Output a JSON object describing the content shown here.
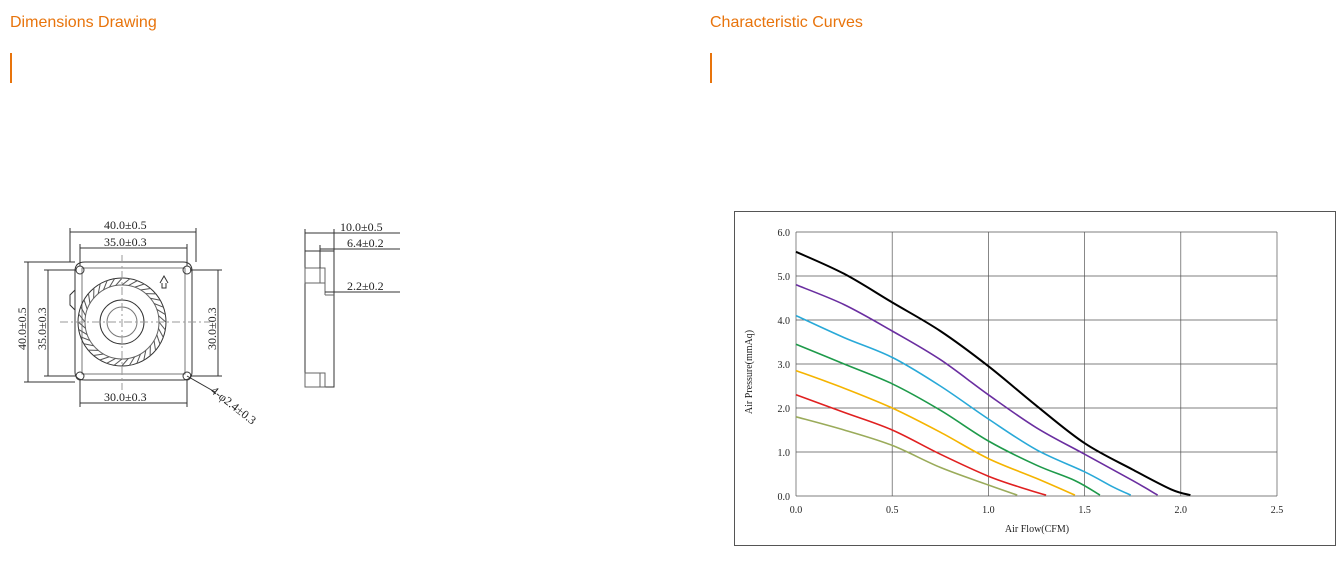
{
  "left_section": {
    "title": "Dimensions Drawing"
  },
  "right_section": {
    "title": "Characteristic Curves"
  },
  "drawing": {
    "dim_top_outer": "40.0±0.5",
    "dim_top_inner": "35.0±0.3",
    "dim_left_outer": "40.0±0.5",
    "dim_left_inner": "35.0±0.3",
    "dim_right": "30.0±0.3",
    "dim_bottom": "30.0±0.3",
    "dim_hole": "4-φ2.4±0.3",
    "dim_side_total": "10.0±0.5",
    "dim_side_a": "6.4±0.2",
    "dim_side_b": "2.2±0.2"
  },
  "chart_data": {
    "type": "line",
    "xlabel": "Air Flow(CFM)",
    "ylabel": "Air Pressure(mmAq)",
    "xlim": [
      0,
      2.5
    ],
    "ylim": [
      0,
      6
    ],
    "x_ticks": [
      "0.0",
      "0.5",
      "1.0",
      "1.5",
      "2.0",
      "2.5"
    ],
    "y_ticks": [
      "0.0",
      "1.0",
      "2.0",
      "3.0",
      "4.0",
      "5.0",
      "6.0"
    ],
    "grid": true,
    "series": [
      {
        "color": "#000000",
        "points": [
          [
            0,
            5.55
          ],
          [
            0.25,
            5.05
          ],
          [
            0.5,
            4.4
          ],
          [
            0.75,
            3.75
          ],
          [
            1.0,
            2.95
          ],
          [
            1.25,
            2.05
          ],
          [
            1.5,
            1.2
          ],
          [
            1.75,
            0.6
          ],
          [
            1.95,
            0.15
          ],
          [
            2.05,
            0.02
          ]
        ]
      },
      {
        "color": "#6a2ea0",
        "points": [
          [
            0,
            4.8
          ],
          [
            0.25,
            4.35
          ],
          [
            0.5,
            3.75
          ],
          [
            0.75,
            3.1
          ],
          [
            1.0,
            2.3
          ],
          [
            1.25,
            1.55
          ],
          [
            1.5,
            0.95
          ],
          [
            1.75,
            0.35
          ],
          [
            1.88,
            0.02
          ]
        ]
      },
      {
        "color": "#29a9d8",
        "points": [
          [
            0,
            4.1
          ],
          [
            0.25,
            3.6
          ],
          [
            0.5,
            3.15
          ],
          [
            0.75,
            2.5
          ],
          [
            1.0,
            1.75
          ],
          [
            1.25,
            1.05
          ],
          [
            1.5,
            0.55
          ],
          [
            1.65,
            0.2
          ],
          [
            1.74,
            0.02
          ]
        ]
      },
      {
        "color": "#1e9a4a",
        "points": [
          [
            0,
            3.45
          ],
          [
            0.25,
            3.0
          ],
          [
            0.5,
            2.55
          ],
          [
            0.75,
            1.95
          ],
          [
            1.0,
            1.25
          ],
          [
            1.25,
            0.7
          ],
          [
            1.45,
            0.35
          ],
          [
            1.58,
            0.02
          ]
        ]
      },
      {
        "color": "#f5b400",
        "points": [
          [
            0,
            2.85
          ],
          [
            0.25,
            2.45
          ],
          [
            0.5,
            2.0
          ],
          [
            0.75,
            1.45
          ],
          [
            1.0,
            0.85
          ],
          [
            1.25,
            0.4
          ],
          [
            1.45,
            0.02
          ]
        ]
      },
      {
        "color": "#e02020",
        "points": [
          [
            0,
            2.3
          ],
          [
            0.25,
            1.9
          ],
          [
            0.5,
            1.5
          ],
          [
            0.75,
            0.95
          ],
          [
            1.0,
            0.45
          ],
          [
            1.2,
            0.15
          ],
          [
            1.3,
            0.02
          ]
        ]
      },
      {
        "color": "#9aab5a",
        "points": [
          [
            0,
            1.8
          ],
          [
            0.25,
            1.5
          ],
          [
            0.5,
            1.15
          ],
          [
            0.75,
            0.65
          ],
          [
            1.0,
            0.25
          ],
          [
            1.15,
            0.02
          ]
        ]
      }
    ]
  }
}
